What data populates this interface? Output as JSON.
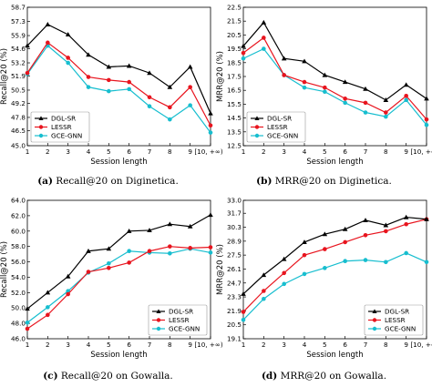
{
  "captions": [
    {
      "letter": "(a)",
      "text": "Recall@20 on Diginetica."
    },
    {
      "letter": "(b)",
      "text": "MRR@20 on Diginetica."
    },
    {
      "letter": "(c)",
      "text": "Recall@20 on Gowalla."
    },
    {
      "letter": "(d)",
      "text": "MRR@20 on Gowalla."
    }
  ],
  "colors": {
    "DGL-SR": "#000000",
    "LESSR": "#e8141e",
    "GCE-GNN": "#17becf"
  },
  "markers": {
    "DGL-SR": "triangle",
    "LESSR": "circle",
    "GCE-GNN": "circle"
  },
  "chart_data": [
    {
      "type": "line",
      "title": "",
      "xlabel": "Session length",
      "ylabel": "Recall@20 (%)",
      "x": [
        "1",
        "2",
        "3",
        "4",
        "5",
        "6",
        "7",
        "8",
        "9",
        "[10, +∞)"
      ],
      "ylim": [
        45.0,
        58.7
      ],
      "yticks": [
        "45.0",
        "46.5",
        "47.8",
        "49.2",
        "50.5",
        "51.9",
        "53.2",
        "54.6",
        "55.9",
        "57.3",
        "58.7"
      ],
      "legend_position": "bottom-left",
      "series": [
        {
          "name": "DGL-SR",
          "values": [
            54.9,
            57.0,
            56.0,
            54.0,
            52.8,
            52.9,
            52.2,
            50.8,
            52.8,
            48.2
          ]
        },
        {
          "name": "LESSR",
          "values": [
            52.2,
            55.2,
            53.7,
            51.8,
            51.5,
            51.3,
            49.8,
            48.8,
            50.8,
            47.0
          ]
        },
        {
          "name": "GCE-GNN",
          "values": [
            52.1,
            54.9,
            53.2,
            50.8,
            50.4,
            50.6,
            48.9,
            47.6,
            49.0,
            46.3
          ]
        }
      ]
    },
    {
      "type": "line",
      "title": "",
      "xlabel": "Session length",
      "ylabel": "MRR@20 (%)",
      "x": [
        "1",
        "2",
        "3",
        "4",
        "5",
        "6",
        "7",
        "8",
        "9",
        "[10, +∞)"
      ],
      "ylim": [
        12.5,
        22.5
      ],
      "yticks": [
        "12.5",
        "13.5",
        "14.5",
        "15.5",
        "16.5",
        "17.5",
        "18.5",
        "19.5",
        "20.5",
        "21.5",
        "22.5"
      ],
      "legend_position": "bottom-left",
      "series": [
        {
          "name": "DGL-SR",
          "values": [
            19.7,
            21.4,
            18.8,
            18.6,
            17.6,
            17.1,
            16.6,
            15.8,
            16.9,
            15.9
          ]
        },
        {
          "name": "LESSR",
          "values": [
            19.2,
            20.3,
            17.6,
            17.1,
            16.7,
            15.9,
            15.6,
            14.9,
            16.1,
            14.4
          ]
        },
        {
          "name": "GCE-GNN",
          "values": [
            18.8,
            19.5,
            17.6,
            16.7,
            16.4,
            15.6,
            14.9,
            14.6,
            15.8,
            14.0
          ]
        }
      ]
    },
    {
      "type": "line",
      "title": "",
      "xlabel": "Session length",
      "ylabel": "Recall@20 (%)",
      "x": [
        "1",
        "2",
        "3",
        "4",
        "5",
        "6",
        "7",
        "8",
        "9",
        "[10, +∞)"
      ],
      "ylim": [
        46.0,
        64.0
      ],
      "yticks": [
        "46.0",
        "48.0",
        "50.0",
        "52.0",
        "54.0",
        "56.0",
        "58.0",
        "60.0",
        "62.0",
        "64.0"
      ],
      "legend_position": "bottom-right",
      "series": [
        {
          "name": "DGL-SR",
          "values": [
            49.9,
            52.0,
            54.1,
            57.4,
            57.7,
            60.0,
            60.1,
            60.9,
            60.6,
            62.1
          ]
        },
        {
          "name": "LESSR",
          "values": [
            47.3,
            49.1,
            51.8,
            54.7,
            55.2,
            55.9,
            57.4,
            58.0,
            57.8,
            57.9
          ]
        },
        {
          "name": "GCE-GNN",
          "values": [
            48.1,
            50.1,
            52.2,
            54.6,
            55.8,
            57.4,
            57.2,
            57.1,
            57.7,
            57.2
          ]
        }
      ]
    },
    {
      "type": "line",
      "title": "",
      "xlabel": "Session length",
      "ylabel": "MRR@20 (%)",
      "x": [
        "1",
        "2",
        "3",
        "4",
        "5",
        "6",
        "7",
        "8",
        "9",
        "[10, +∞)"
      ],
      "ylim": [
        19.1,
        33.0
      ],
      "yticks": [
        "19.1",
        "20.5",
        "21.9",
        "23.3",
        "24.7",
        "26.1",
        "27.5",
        "28.9",
        "30.3",
        "31.7",
        "33.0"
      ],
      "legend_position": "bottom-right",
      "series": [
        {
          "name": "DGL-SR",
          "values": [
            23.6,
            25.5,
            27.1,
            28.8,
            29.6,
            30.1,
            31.0,
            30.5,
            31.3,
            31.1
          ]
        },
        {
          "name": "LESSR",
          "values": [
            21.8,
            23.9,
            25.7,
            27.5,
            28.1,
            28.8,
            29.5,
            29.9,
            30.6,
            31.1
          ]
        },
        {
          "name": "GCE-GNN",
          "values": [
            21.0,
            23.1,
            24.6,
            25.6,
            26.2,
            26.9,
            27.0,
            26.8,
            27.7,
            26.8
          ]
        }
      ]
    }
  ]
}
